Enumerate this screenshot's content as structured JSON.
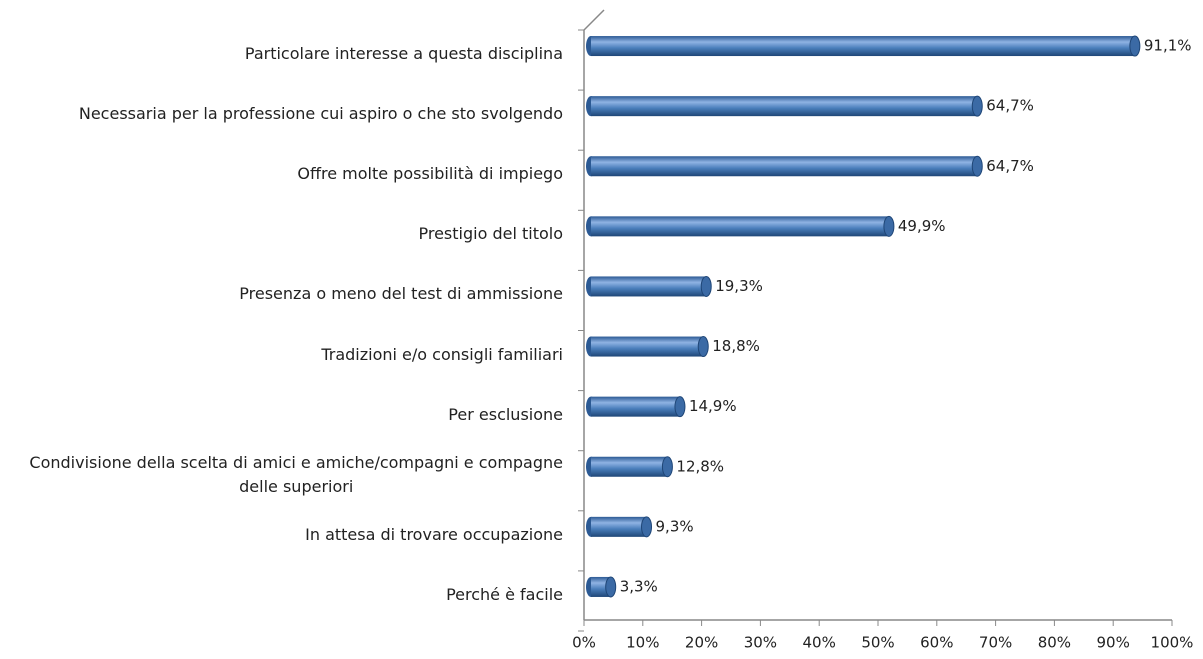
{
  "chart_data": {
    "type": "bar",
    "orientation": "horizontal",
    "categories": [
      "Particolare interesse a questa disciplina",
      "Necessaria per la professione cui aspiro o che sto svolgendo",
      "Offre molte possibilità di impiego",
      "Prestigio del titolo",
      "Presenza o meno del test di ammissione",
      "Tradizioni e/o consigli familiari",
      "Per esclusione",
      "Condivisione della scelta di amici e amiche/compagni e compagne\ndelle superiori",
      "In attesa di trovare occupazione",
      "Perché è facile"
    ],
    "values": [
      91.1,
      64.7,
      64.7,
      49.9,
      19.3,
      18.8,
      14.9,
      12.8,
      9.3,
      3.3
    ],
    "value_labels": [
      "91,1%",
      "64,7%",
      "64,7%",
      "49,9%",
      "19,3%",
      "18,8%",
      "14,9%",
      "12,8%",
      "9,3%",
      "3,3%"
    ],
    "color": "#4a7ebb",
    "xlim": [
      0,
      100
    ],
    "xticks": [
      {
        "value": 0,
        "label": "0%"
      },
      {
        "value": 10,
        "label": "10%"
      },
      {
        "value": 20,
        "label": "20%"
      },
      {
        "value": 30,
        "label": "30%"
      },
      {
        "value": 40,
        "label": "40%"
      },
      {
        "value": 50,
        "label": "50%"
      },
      {
        "value": 60,
        "label": "60%"
      },
      {
        "value": 70,
        "label": "70%"
      },
      {
        "value": 80,
        "label": "80%"
      },
      {
        "value": 90,
        "label": "90%"
      },
      {
        "value": 100,
        "label": "100%"
      }
    ],
    "grid": false
  }
}
